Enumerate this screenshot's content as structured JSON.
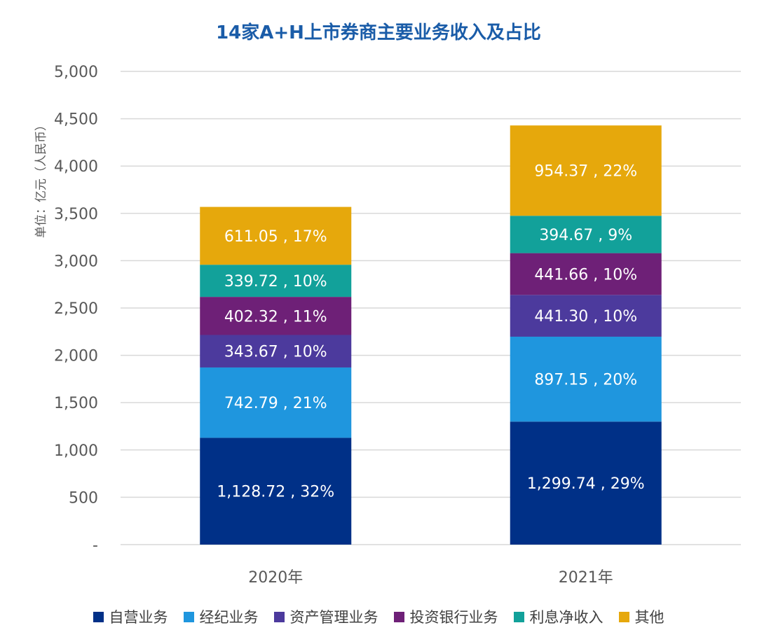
{
  "chart_data": {
    "type": "bar",
    "stacked": true,
    "title": "14家A+H上市券商主要业务收入及占比",
    "xlabel": "",
    "ylabel": "单位：亿元（人民币）",
    "ylim": [
      0,
      5000
    ],
    "yticks": [
      0,
      500,
      1000,
      1500,
      2000,
      2500,
      3000,
      3500,
      4000,
      4500,
      5000
    ],
    "ytick_labels": [
      "-",
      "500",
      "1,000",
      "1,500",
      "2,000",
      "2,500",
      "3,000",
      "3,500",
      "4,000",
      "4,500",
      "5,000"
    ],
    "grid": true,
    "legend_position": "bottom",
    "categories": [
      "2020年",
      "2021年"
    ],
    "series": [
      {
        "name": "自营业务",
        "color": "#003087",
        "values": [
          1128.72,
          1299.74
        ],
        "labels": [
          "1,128.72 , 32%",
          "1,299.74 , 29%"
        ]
      },
      {
        "name": "经纪业务",
        "color": "#1f96de",
        "values": [
          742.79,
          897.15
        ],
        "labels": [
          "742.79 , 21%",
          "897.15 , 20%"
        ]
      },
      {
        "name": "资产管理业务",
        "color": "#4c3a9d",
        "values": [
          343.67,
          441.3
        ],
        "labels": [
          "343.67 , 10%",
          "441.30 , 10%"
        ]
      },
      {
        "name": "投资银行业务",
        "color": "#6e2077",
        "values": [
          402.32,
          441.66
        ],
        "labels": [
          "402.32 , 11%",
          "441.66 , 10%"
        ]
      },
      {
        "name": "利息净收入",
        "color": "#12a19a",
        "values": [
          339.72,
          394.67
        ],
        "labels": [
          "339.72 , 10%",
          "394.67 , 9%"
        ]
      },
      {
        "name": "其他",
        "color": "#e6a80c",
        "values": [
          611.05,
          954.37
        ],
        "labels": [
          "611.05 , 17%",
          "954.37 , 22%"
        ]
      }
    ]
  }
}
